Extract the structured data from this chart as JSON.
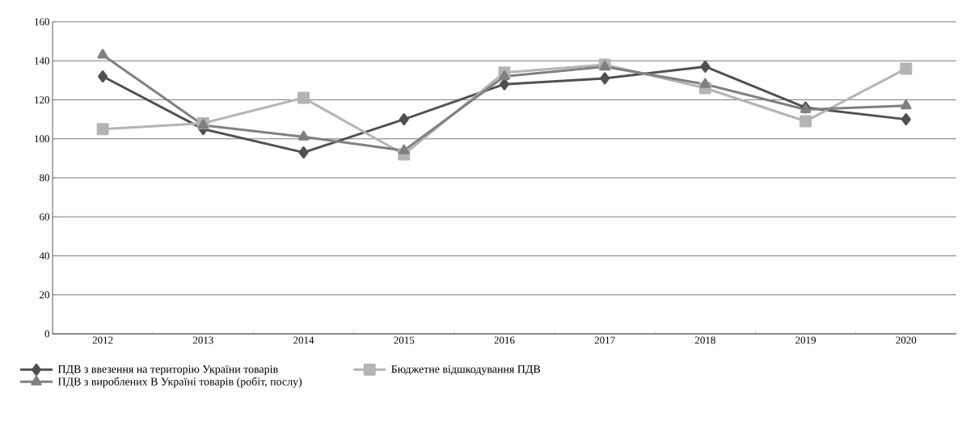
{
  "chart_data": {
    "type": "line",
    "categories": [
      "2012",
      "2013",
      "2014",
      "2015",
      "2016",
      "2017",
      "2018",
      "2019",
      "2020"
    ],
    "series": [
      {
        "name": "ПДВ з ввезення на територію України товарів",
        "color": "#505050",
        "marker": "diamond",
        "values": [
          132,
          105,
          93,
          110,
          128,
          131,
          137,
          116,
          110
        ]
      },
      {
        "name": "Бюджетне відшкодування ПДВ",
        "color": "#b4b4b4",
        "marker": "square",
        "values": [
          105,
          108,
          121,
          92,
          134,
          138,
          126,
          109,
          136
        ]
      },
      {
        "name": "ПДВ з вироблених В Україні товарів (робіт, послу)",
        "color": "#808080",
        "marker": "triangle",
        "values": [
          143,
          107,
          101,
          94,
          132,
          137,
          128,
          115,
          117
        ]
      }
    ],
    "ylim": [
      0,
      160
    ],
    "yticks": [
      0,
      20,
      40,
      60,
      80,
      100,
      120,
      140,
      160
    ],
    "grid": "y",
    "legend": "bottom left",
    "line_style": "solid"
  }
}
